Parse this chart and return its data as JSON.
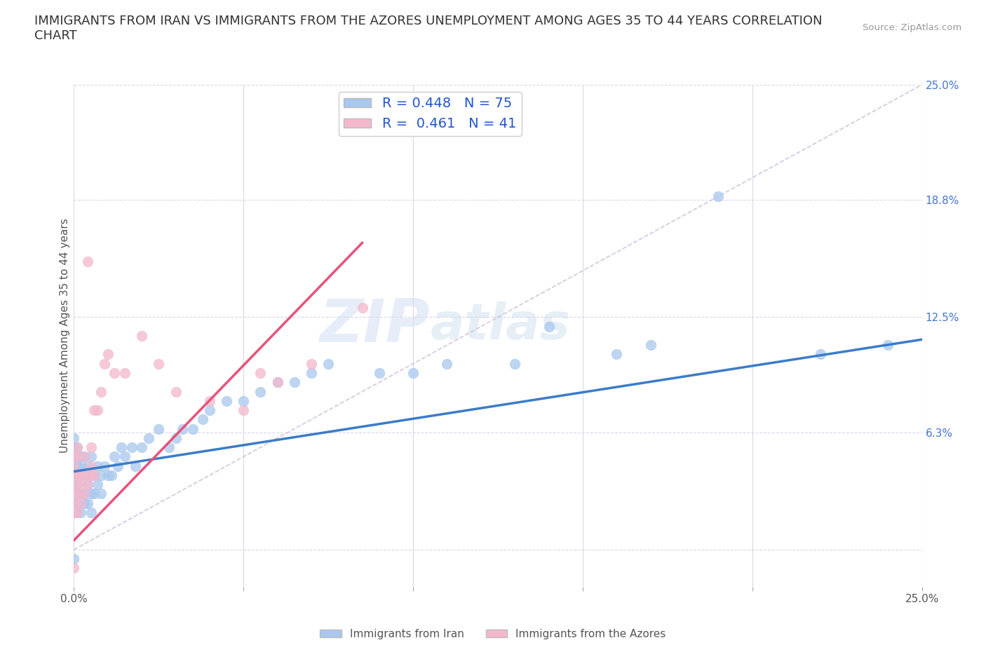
{
  "title_line1": "IMMIGRANTS FROM IRAN VS IMMIGRANTS FROM THE AZORES UNEMPLOYMENT AMONG AGES 35 TO 44 YEARS CORRELATION",
  "title_line2": "CHART",
  "source": "Source: ZipAtlas.com",
  "ylabel": "Unemployment Among Ages 35 to 44 years",
  "xlim": [
    0.0,
    0.25
  ],
  "ylim": [
    -0.02,
    0.25
  ],
  "yticks_right": [
    0.063,
    0.125,
    0.188,
    0.25
  ],
  "ytick_right_labels": [
    "6.3%",
    "12.5%",
    "18.8%",
    "25.0%"
  ],
  "iran_color": "#a8c8ee",
  "azores_color": "#f4b8cc",
  "iran_line_color": "#3b7cc9",
  "azores_line_color": "#e8527a",
  "diag_line_color": "#c8b8d8",
  "legend_R_iran": "0.448",
  "legend_N_iran": "75",
  "legend_R_azores": "0.461",
  "legend_N_azores": "41",
  "iran_trend_x0": 0.0,
  "iran_trend_y0": 0.042,
  "iran_trend_x1": 0.25,
  "iran_trend_y1": 0.113,
  "azores_trend_x0": 0.0,
  "azores_trend_y0": 0.005,
  "azores_trend_x1": 0.085,
  "azores_trend_y1": 0.165,
  "iran_scatter_x": [
    0.0,
    0.0,
    0.0,
    0.0,
    0.0,
    0.0,
    0.0,
    0.0,
    0.0,
    0.0,
    0.001,
    0.001,
    0.001,
    0.001,
    0.001,
    0.001,
    0.001,
    0.001,
    0.002,
    0.002,
    0.002,
    0.002,
    0.002,
    0.003,
    0.003,
    0.003,
    0.003,
    0.004,
    0.004,
    0.004,
    0.005,
    0.005,
    0.005,
    0.005,
    0.006,
    0.006,
    0.007,
    0.007,
    0.008,
    0.008,
    0.009,
    0.01,
    0.011,
    0.012,
    0.013,
    0.014,
    0.015,
    0.017,
    0.018,
    0.02,
    0.022,
    0.025,
    0.028,
    0.03,
    0.032,
    0.035,
    0.038,
    0.04,
    0.045,
    0.05,
    0.055,
    0.06,
    0.065,
    0.07,
    0.075,
    0.09,
    0.1,
    0.11,
    0.13,
    0.14,
    0.16,
    0.17,
    0.19,
    0.22,
    0.24
  ],
  "iran_scatter_y": [
    0.02,
    0.025,
    0.03,
    0.035,
    0.04,
    0.045,
    0.05,
    0.055,
    0.06,
    -0.005,
    0.02,
    0.025,
    0.03,
    0.035,
    0.04,
    0.045,
    0.05,
    0.055,
    0.02,
    0.03,
    0.04,
    0.045,
    0.05,
    0.025,
    0.03,
    0.04,
    0.05,
    0.025,
    0.035,
    0.045,
    0.02,
    0.03,
    0.04,
    0.05,
    0.03,
    0.04,
    0.035,
    0.045,
    0.03,
    0.04,
    0.045,
    0.04,
    0.04,
    0.05,
    0.045,
    0.055,
    0.05,
    0.055,
    0.045,
    0.055,
    0.06,
    0.065,
    0.055,
    0.06,
    0.065,
    0.065,
    0.07,
    0.075,
    0.08,
    0.08,
    0.085,
    0.09,
    0.09,
    0.095,
    0.1,
    0.095,
    0.095,
    0.1,
    0.1,
    0.12,
    0.105,
    0.11,
    0.19,
    0.105,
    0.11
  ],
  "azores_scatter_x": [
    0.0,
    0.0,
    0.0,
    0.0,
    0.0,
    0.0,
    0.0,
    0.0,
    0.001,
    0.001,
    0.001,
    0.001,
    0.001,
    0.002,
    0.002,
    0.002,
    0.003,
    0.003,
    0.003,
    0.004,
    0.004,
    0.005,
    0.005,
    0.005,
    0.006,
    0.006,
    0.007,
    0.008,
    0.009,
    0.01,
    0.012,
    0.015,
    0.02,
    0.025,
    0.03,
    0.04,
    0.05,
    0.055,
    0.06,
    0.07,
    0.085
  ],
  "azores_scatter_y": [
    0.02,
    0.025,
    0.03,
    0.035,
    0.04,
    0.045,
    0.05,
    -0.01,
    0.02,
    0.03,
    0.04,
    0.05,
    0.055,
    0.025,
    0.035,
    0.04,
    0.03,
    0.04,
    0.05,
    0.035,
    0.155,
    0.04,
    0.045,
    0.055,
    0.04,
    0.075,
    0.075,
    0.085,
    0.1,
    0.105,
    0.095,
    0.095,
    0.115,
    0.1,
    0.085,
    0.08,
    0.075,
    0.095,
    0.09,
    0.1,
    0.13
  ],
  "background_color": "#ffffff",
  "grid_color": "#d8d8e8",
  "title_fontsize": 13,
  "axis_label_fontsize": 11,
  "tick_fontsize": 11
}
